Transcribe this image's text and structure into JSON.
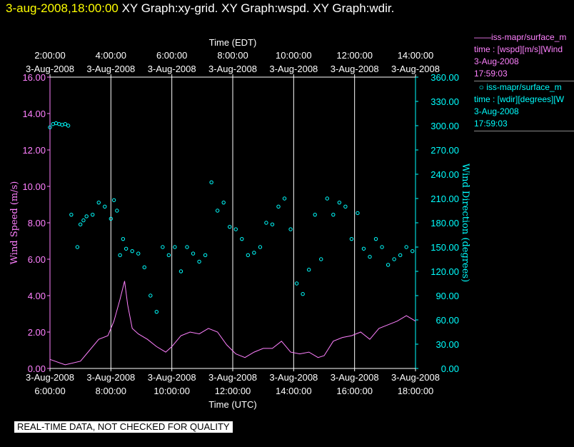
{
  "header": {
    "timestamp": "3-aug-2008,18:00:00",
    "title": "XY Graph:xy-grid.  XY Graph:wspd.  XY Graph:wdir."
  },
  "legend": [
    {
      "marker": "——",
      "line1": "iss-mapr/surface_m",
      "line2": "time : [wspd][m/s][Wind",
      "line3": "3-Aug-2008",
      "line4": "17:59:03",
      "color": "#ff80ff"
    },
    {
      "marker": "○",
      "line1": "iss-mapr/surface_m",
      "line2": "time : [wdir][degrees][W",
      "line3": "3-Aug-2008",
      "line4": "17:59:03",
      "color": "#00ffff"
    }
  ],
  "footer_note": "REAL-TIME DATA, NOT CHECKED FOR QUALITY",
  "chart_data": {
    "type": "line",
    "top_axis_title": "Time (EDT)",
    "bottom_axis_title": "Time (UTC)",
    "left_axis_title": "Wind Speed (m/s)",
    "right_axis_title": "Wind Direction (degrees)",
    "x_range_utc_hours": [
      6.0,
      18.0
    ],
    "top_ticks": [
      {
        "time": "2:00:00",
        "date": "3-Aug-2008",
        "utc_hour": 6
      },
      {
        "time": "4:00:00",
        "date": "3-Aug-2008",
        "utc_hour": 8
      },
      {
        "time": "6:00:00",
        "date": "3-Aug-2008",
        "utc_hour": 10
      },
      {
        "time": "8:00:00",
        "date": "3-Aug-2008",
        "utc_hour": 12
      },
      {
        "time": "10:00:00",
        "date": "3-Aug-2008",
        "utc_hour": 14
      },
      {
        "time": "12:00:00",
        "date": "3-Aug-2008",
        "utc_hour": 16
      },
      {
        "time": "14:00:00",
        "date": "3-Aug-2008",
        "utc_hour": 18
      }
    ],
    "bottom_ticks": [
      {
        "date": "3-Aug-2008",
        "time": "6:00:00",
        "utc_hour": 6
      },
      {
        "date": "3-Aug-2008",
        "time": "8:00:00",
        "utc_hour": 8
      },
      {
        "date": "3-Aug-2008",
        "time": "10:00:00",
        "utc_hour": 10
      },
      {
        "date": "3-Aug-2008",
        "time": "12:00:00",
        "utc_hour": 12
      },
      {
        "date": "3-Aug-2008",
        "time": "14:00:00",
        "utc_hour": 14
      },
      {
        "date": "3-Aug-2008",
        "time": "16:00:00",
        "utc_hour": 16
      },
      {
        "date": "3-Aug-2008",
        "time": "18:00:00",
        "utc_hour": 18
      }
    ],
    "vertical_grid_utc_hours": [
      8,
      10,
      12,
      14,
      16
    ],
    "left_axis": {
      "range": [
        0,
        16
      ],
      "ticks": [
        "0.00",
        "2.00",
        "4.00",
        "6.00",
        "8.00",
        "10.00",
        "12.00",
        "14.00",
        "16.00"
      ],
      "color": "#ff80ff"
    },
    "right_axis": {
      "range": [
        0,
        360
      ],
      "ticks": [
        "0.00",
        "30.00",
        "60.00",
        "90.00",
        "120.00",
        "150.00",
        "180.00",
        "210.00",
        "240.00",
        "270.00",
        "300.00",
        "330.00",
        "360.00"
      ],
      "color": "#00ffff"
    },
    "series": [
      {
        "name": "wspd",
        "axis": "left",
        "style": "line",
        "color": "#ff80ff",
        "x_utc_hours": [
          6.0,
          6.5,
          7.0,
          7.3,
          7.6,
          7.9,
          8.1,
          8.3,
          8.45,
          8.55,
          8.7,
          8.9,
          9.2,
          9.5,
          9.8,
          10.0,
          10.3,
          10.6,
          10.9,
          11.2,
          11.5,
          11.8,
          12.1,
          12.4,
          12.7,
          13.0,
          13.3,
          13.6,
          13.9,
          14.2,
          14.5,
          14.8,
          15.0,
          15.3,
          15.6,
          15.9,
          16.2,
          16.5,
          16.8,
          17.1,
          17.4,
          17.7,
          18.0
        ],
        "values": [
          0.5,
          0.2,
          0.4,
          1.0,
          1.6,
          1.8,
          2.6,
          3.8,
          4.8,
          3.5,
          2.2,
          1.9,
          1.6,
          1.2,
          0.9,
          1.2,
          1.8,
          2.0,
          1.9,
          2.2,
          2.0,
          1.3,
          0.8,
          0.6,
          0.9,
          1.1,
          1.1,
          1.5,
          0.9,
          0.8,
          0.9,
          0.6,
          0.7,
          1.5,
          1.7,
          1.8,
          2.0,
          1.6,
          2.2,
          2.4,
          2.6,
          2.9,
          2.6
        ]
      },
      {
        "name": "wdir",
        "axis": "right",
        "style": "circles",
        "color": "#00ffff",
        "x_utc_hours": [
          6.0,
          6.1,
          6.2,
          6.3,
          6.4,
          6.5,
          6.6,
          6.7,
          6.9,
          7.0,
          7.1,
          7.2,
          7.4,
          7.6,
          7.8,
          8.0,
          8.1,
          8.2,
          8.3,
          8.4,
          8.5,
          8.7,
          8.9,
          9.1,
          9.3,
          9.5,
          9.7,
          9.9,
          10.1,
          10.3,
          10.5,
          10.7,
          10.9,
          11.1,
          11.3,
          11.5,
          11.7,
          11.9,
          12.1,
          12.3,
          12.5,
          12.7,
          12.9,
          13.1,
          13.3,
          13.5,
          13.7,
          13.9,
          14.1,
          14.3,
          14.5,
          14.7,
          14.9,
          15.1,
          15.3,
          15.5,
          15.7,
          15.9,
          16.1,
          16.3,
          16.5,
          16.7,
          16.9,
          17.1,
          17.3,
          17.5,
          17.7,
          17.9
        ],
        "values": [
          298,
          302,
          303,
          302,
          301,
          302,
          300,
          190,
          150,
          178,
          183,
          188,
          190,
          205,
          200,
          185,
          208,
          195,
          140,
          160,
          148,
          145,
          142,
          125,
          90,
          70,
          150,
          140,
          150,
          120,
          150,
          142,
          132,
          140,
          230,
          195,
          205,
          175,
          172,
          160,
          140,
          143,
          150,
          180,
          178,
          200,
          210,
          172,
          105,
          92,
          122,
          190,
          135,
          210,
          190,
          205,
          200,
          160,
          192,
          148,
          138,
          160,
          150,
          128,
          135,
          140,
          150,
          145
        ]
      }
    ]
  }
}
